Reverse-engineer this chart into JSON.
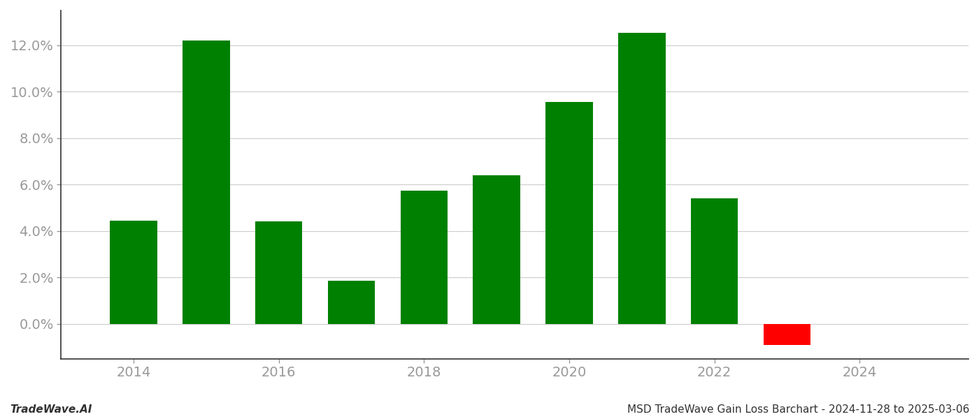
{
  "years": [
    2014,
    2015,
    2016,
    2017,
    2018,
    2019,
    2020,
    2021,
    2022,
    2023
  ],
  "values": [
    0.0445,
    0.122,
    0.044,
    0.0185,
    0.0575,
    0.064,
    0.0955,
    0.1255,
    0.054,
    -0.009
  ],
  "bar_colors": [
    "#008000",
    "#008000",
    "#008000",
    "#008000",
    "#008000",
    "#008000",
    "#008000",
    "#008000",
    "#008000",
    "#ff0000"
  ],
  "title": "MSD TradeWave Gain Loss Barchart - 2024-11-28 to 2025-03-06",
  "watermark": "TradeWave.AI",
  "background_color": "#ffffff",
  "grid_color": "#cccccc",
  "axis_label_color": "#999999",
  "ylim": [
    -0.015,
    0.135
  ],
  "ytick_values": [
    0.0,
    0.02,
    0.04,
    0.06,
    0.08,
    0.1,
    0.12
  ],
  "xlim": [
    2013.0,
    2025.5
  ],
  "xtick_values": [
    2014,
    2016,
    2018,
    2020,
    2022,
    2024
  ],
  "bar_width": 0.65,
  "label_fontsize": 14,
  "footer_fontsize": 11
}
